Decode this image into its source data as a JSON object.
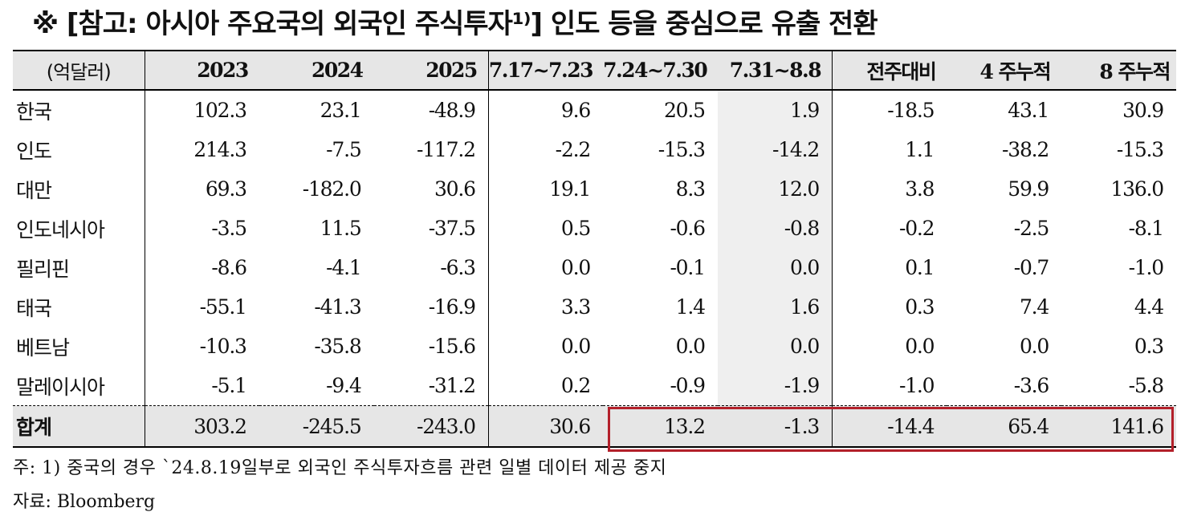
{
  "title": "※ [참고: 아시아 주요국의 외국인 주식투자¹⁾] 인도 등을 중심으로 유출 전환",
  "table": {
    "unit_label": "(억달러)",
    "headers": [
      "2023",
      "2024",
      "2025",
      "7.17~7.23",
      "7.24~7.30",
      "7.31~8.8",
      "전주대비",
      "4 주누적",
      "8 주누적"
    ],
    "rows": [
      {
        "country": "한국",
        "values": [
          "102.3",
          "23.1",
          "-48.9",
          "9.6",
          "20.5",
          "1.9",
          "-18.5",
          "43.1",
          "30.9"
        ]
      },
      {
        "country": "인도",
        "values": [
          "214.3",
          "-7.5",
          "-117.2",
          "-2.2",
          "-15.3",
          "-14.2",
          "1.1",
          "-38.2",
          "-15.3"
        ]
      },
      {
        "country": "대만",
        "values": [
          "69.3",
          "-182.0",
          "30.6",
          "19.1",
          "8.3",
          "12.0",
          "3.8",
          "59.9",
          "136.0"
        ]
      },
      {
        "country": "인도네시아",
        "values": [
          "-3.5",
          "11.5",
          "-37.5",
          "0.5",
          "-0.6",
          "-0.8",
          "-0.2",
          "-2.5",
          "-8.1"
        ]
      },
      {
        "country": "필리핀",
        "values": [
          "-8.6",
          "-4.1",
          "-6.3",
          "0.0",
          "-0.1",
          "0.0",
          "0.1",
          "-0.7",
          "-1.0"
        ]
      },
      {
        "country": "태국",
        "values": [
          "-55.1",
          "-41.3",
          "-16.9",
          "3.3",
          "1.4",
          "1.6",
          "0.3",
          "7.4",
          "4.4"
        ]
      },
      {
        "country": "베트남",
        "values": [
          "-10.3",
          "-35.8",
          "-15.6",
          "0.0",
          "0.0",
          "0.0",
          "0.0",
          "0.0",
          "0.3"
        ]
      },
      {
        "country": "말레이시아",
        "values": [
          "-5.1",
          "-9.4",
          "-31.2",
          "0.2",
          "-0.9",
          "-1.9",
          "-1.0",
          "-3.6",
          "-5.8"
        ]
      }
    ],
    "total": {
      "label": "합계",
      "values": [
        "303.2",
        "-245.5",
        "-243.0",
        "30.6",
        "13.2",
        "-1.3",
        "-14.4",
        "65.4",
        "141.6"
      ]
    }
  },
  "note": "주: 1) 중국의 경우 `24.8.19일부로 외국인 주식투자흐름 관련 일별 데이터 제공 중지",
  "source": "자료: Bloomberg",
  "colors": {
    "highlight_border": "#b3202a",
    "header_bg": "#e6e6e6",
    "shade_bg": "#efefef"
  }
}
